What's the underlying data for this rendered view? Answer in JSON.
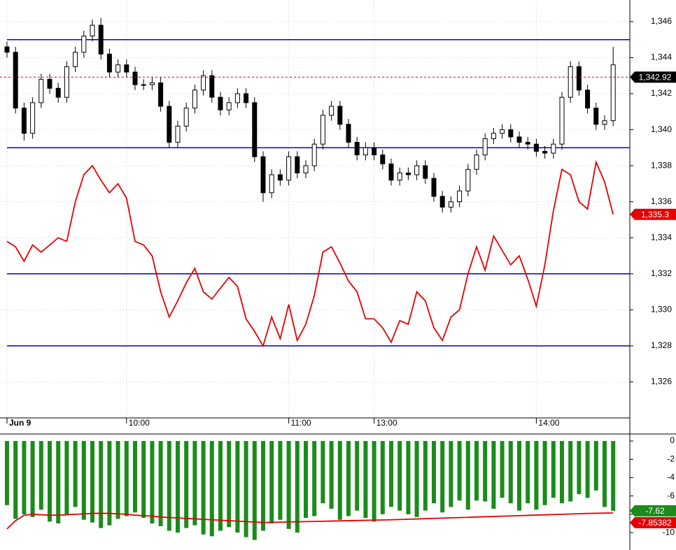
{
  "chart_data": [
    {
      "type": "candlestick",
      "categories": [
        "Jun 9",
        null,
        null,
        null,
        null,
        null,
        null,
        null,
        null,
        null,
        null,
        null,
        null,
        null,
        "10:00",
        null,
        null,
        null,
        null,
        null,
        null,
        null,
        null,
        null,
        null,
        null,
        null,
        null,
        null,
        null,
        null,
        null,
        null,
        "11:00",
        null,
        null,
        null,
        null,
        null,
        null,
        null,
        null,
        null,
        "13:00",
        null,
        null,
        null,
        null,
        null,
        null,
        null,
        null,
        null,
        null,
        null,
        null,
        null,
        null,
        null,
        null,
        null,
        null,
        "14:00",
        null,
        null,
        null,
        null,
        null,
        null,
        null,
        null,
        null
      ],
      "open": [
        1344.6,
        1344.3,
        1341.2,
        1339.8,
        1341.5,
        1342.8,
        1342.3,
        1341.8,
        1343.5,
        1344.3,
        1345.2,
        1345.8,
        1344.2,
        1343.2,
        1343.6,
        1343.2,
        1342.5,
        1342.5,
        1342.6,
        1341.3,
        1339.3,
        1340.2,
        1341.2,
        1342.2,
        1343,
        1341.8,
        1341.1,
        1341.5,
        1342,
        1341.5,
        1338.5,
        1336.5,
        1337.5,
        1337.2,
        1338.5,
        1337.6,
        1338,
        1339.2,
        1340.8,
        1341.3,
        1340.3,
        1339.3,
        1338.6,
        1339,
        1338.6,
        1338.1,
        1337.2,
        1337.6,
        1337.5,
        1338,
        1337.3,
        1336.3,
        1335.7,
        1336,
        1336.6,
        1337.8,
        1338.6,
        1339.5,
        1339.8,
        1340,
        1339.6,
        1339.3,
        1339.2,
        1338.8,
        1338.7,
        1339.2,
        1341.8,
        1343.5,
        1342.2,
        1341.2,
        1340.3,
        1340.5
      ],
      "high": [
        1344.9,
        1344.6,
        1341.5,
        1341.8,
        1343.1,
        1343.1,
        1342.6,
        1343.8,
        1344.6,
        1345.5,
        1346.1,
        1346.2,
        1344.5,
        1343.9,
        1343.9,
        1343.5,
        1342.8,
        1342.9,
        1342.9,
        1341.6,
        1340.5,
        1341.5,
        1342.5,
        1343.3,
        1343.3,
        1342.1,
        1341.8,
        1342.3,
        1342.3,
        1341.8,
        1338.8,
        1337.8,
        1337.8,
        1338.8,
        1338.8,
        1338.3,
        1339.5,
        1341.1,
        1341.6,
        1341.6,
        1340.6,
        1339.6,
        1339.3,
        1339.3,
        1338.9,
        1338.4,
        1337.9,
        1337.9,
        1338.3,
        1338.3,
        1337.6,
        1336.6,
        1336.3,
        1336.9,
        1338.1,
        1338.9,
        1339.8,
        1340.1,
        1340.3,
        1340.3,
        1339.9,
        1339.6,
        1339.5,
        1339.1,
        1339.5,
        1342.1,
        1343.8,
        1343.8,
        1342.5,
        1341.5,
        1340.8,
        1344.6
      ],
      "low": [
        1344,
        1340.9,
        1339.4,
        1339.5,
        1341.2,
        1342,
        1341.5,
        1341.5,
        1343.2,
        1344,
        1344.9,
        1343.9,
        1342.9,
        1342.9,
        1342.9,
        1342.2,
        1342.2,
        1342.2,
        1341,
        1339,
        1339,
        1339.9,
        1340.9,
        1341.9,
        1341.5,
        1340.8,
        1340.8,
        1341.2,
        1341.2,
        1338.2,
        1336,
        1336.2,
        1336.9,
        1336.9,
        1337.3,
        1337.3,
        1337.7,
        1338.9,
        1340.5,
        1340,
        1339,
        1338.3,
        1338.3,
        1338.3,
        1337.8,
        1336.9,
        1336.9,
        1337.2,
        1337.2,
        1337,
        1336,
        1335.4,
        1335.4,
        1335.7,
        1336.3,
        1337.5,
        1338.3,
        1339.2,
        1339.5,
        1339.3,
        1339,
        1338.9,
        1338.5,
        1338.4,
        1338.4,
        1338.9,
        1341.5,
        1341.9,
        1340.9,
        1340,
        1340,
        1340.2
      ],
      "close": [
        1344.3,
        1341.2,
        1339.8,
        1341.5,
        1342.8,
        1342.3,
        1341.8,
        1343.5,
        1344.3,
        1345.2,
        1345.8,
        1344.2,
        1343.2,
        1343.6,
        1343.2,
        1342.5,
        1342.5,
        1342.6,
        1341.3,
        1339.3,
        1340.2,
        1341.2,
        1342.2,
        1343,
        1341.8,
        1341.1,
        1341.5,
        1342,
        1341.5,
        1338.5,
        1336.5,
        1337.5,
        1337.2,
        1338.5,
        1337.6,
        1338,
        1339.2,
        1340.8,
        1341.3,
        1340.3,
        1339.3,
        1338.6,
        1339,
        1338.6,
        1338.1,
        1337.2,
        1337.6,
        1337.5,
        1338,
        1337.3,
        1336.3,
        1335.7,
        1336,
        1336.6,
        1337.8,
        1338.6,
        1339.5,
        1339.8,
        1340,
        1339.6,
        1339.3,
        1339.2,
        1338.8,
        1338.7,
        1339.2,
        1341.8,
        1343.5,
        1342.2,
        1341.2,
        1340.3,
        1340.5,
        1343.6
      ],
      "color": "#000000",
      "line": {
        "color": "#e60000",
        "values": [
          1333.8,
          1333.5,
          1332.7,
          1333.6,
          1333.2,
          1333.6,
          1334,
          1333.8,
          1336,
          1337.5,
          1338,
          1337.2,
          1336.5,
          1337,
          1336.2,
          1333.8,
          1333.6,
          1333,
          1331,
          1329.6,
          1330.5,
          1331.5,
          1332.3,
          1331,
          1330.6,
          1331.2,
          1331.8,
          1331.3,
          1329.5,
          1328.8,
          1328,
          1329.6,
          1328.4,
          1330.3,
          1328.3,
          1329.2,
          1330.8,
          1333.2,
          1333.5,
          1332.6,
          1331.6,
          1331,
          1329.5,
          1329.5,
          1329,
          1328.2,
          1329.4,
          1329.2,
          1331,
          1330.5,
          1329,
          1328.3,
          1329.6,
          1330,
          1332,
          1333.5,
          1332.2,
          1334.1,
          1333.3,
          1332.5,
          1333,
          1331.7,
          1330.2,
          1332.5,
          1335.5,
          1337.8,
          1337.5,
          1336,
          1335.6,
          1338.2,
          1337.1,
          1335.3
        ]
      },
      "reference_lines": {
        "color": "#0000cc",
        "values": [
          1345,
          1339,
          1332,
          1328
        ]
      },
      "markers": [
        {
          "value": 1342.92,
          "label": "1,342.92",
          "color": "#000000",
          "line": "dashed"
        },
        {
          "value": 1335.3,
          "label": "1,335.3",
          "color": "#e60000"
        }
      ],
      "ylim": [
        1324,
        1347.2
      ],
      "yticks": [
        {
          "value": 1326,
          "label": "1,326"
        },
        {
          "value": 1328,
          "label": "1,328"
        },
        {
          "value": 1330,
          "label": "1,330"
        },
        {
          "value": 1332,
          "label": "1,332"
        },
        {
          "value": 1334,
          "label": "1,334"
        },
        {
          "value": 1336,
          "label": "1,336"
        },
        {
          "value": 1338,
          "label": "1,338"
        },
        {
          "value": 1340,
          "label": "1,340"
        },
        {
          "value": 1342,
          "label": "1,342"
        },
        {
          "value": 1344,
          "label": "1,344"
        },
        {
          "value": 1346,
          "label": "1,346"
        }
      ],
      "grid": true
    },
    {
      "type": "bar",
      "values": [
        -7,
        -8.5,
        -8,
        -8.3,
        -7.5,
        -8.8,
        -9,
        -8,
        -7.2,
        -8.6,
        -8.9,
        -9.5,
        -9.2,
        -8.5,
        -8.2,
        -7.8,
        -8.4,
        -9,
        -9.3,
        -9.8,
        -10,
        -9.5,
        -9.2,
        -10.2,
        -10.4,
        -9.8,
        -9.4,
        -10,
        -10.5,
        -10.8,
        -9.8,
        -9,
        -8.6,
        -9.6,
        -10,
        -8.4,
        -8.2,
        -6.8,
        -7.4,
        -8.6,
        -8.2,
        -7.6,
        -8.4,
        -8.8,
        -8,
        -7.2,
        -7.6,
        -8,
        -8.3,
        -7.6,
        -6.8,
        -7.8,
        -7.2,
        -6.5,
        -7.5,
        -6.5,
        -6.6,
        -7.4,
        -6.2,
        -6.8,
        -7.6,
        -6.8,
        -7.5,
        -7,
        -6.2,
        -6.8,
        -6.6,
        -5.8,
        -6.2,
        -5.4,
        -7.2,
        -7.62
      ],
      "color": "#1a8c1a",
      "line": {
        "color": "#e60000",
        "values": [
          -9.6,
          -8.7,
          -8.1,
          -8,
          -8.05,
          -8.1,
          -8.1,
          -8.05,
          -8,
          -7.95,
          -7.9,
          -7.9,
          -7.9,
          -7.95,
          -8,
          -8.1,
          -8.15,
          -8.2,
          -8.3,
          -8.35,
          -8.4,
          -8.45,
          -8.5,
          -8.55,
          -8.6,
          -8.65,
          -8.7,
          -8.75,
          -8.8,
          -8.85,
          -8.9,
          -8.88,
          -8.86,
          -8.84,
          -8.82,
          -8.8,
          -8.78,
          -8.76,
          -8.74,
          -8.72,
          -8.7,
          -8.68,
          -8.66,
          -8.64,
          -8.62,
          -8.6,
          -8.57,
          -8.54,
          -8.51,
          -8.48,
          -8.45,
          -8.42,
          -8.39,
          -8.36,
          -8.33,
          -8.3,
          -8.27,
          -8.24,
          -8.21,
          -8.18,
          -8.15,
          -8.12,
          -8.09,
          -8.06,
          -8.03,
          -8,
          -7.97,
          -7.94,
          -7.91,
          -7.89,
          -7.87,
          -7.85382
        ]
      },
      "markers": [
        {
          "value": -7.62,
          "color": "#1a8c1a"
        },
        {
          "value": -7.85382,
          "color": "#e60000"
        }
      ],
      "ylim": [
        -11.9,
        0.69
      ],
      "yticks": [
        0,
        -2,
        -4,
        -6,
        -8,
        -10
      ]
    }
  ]
}
